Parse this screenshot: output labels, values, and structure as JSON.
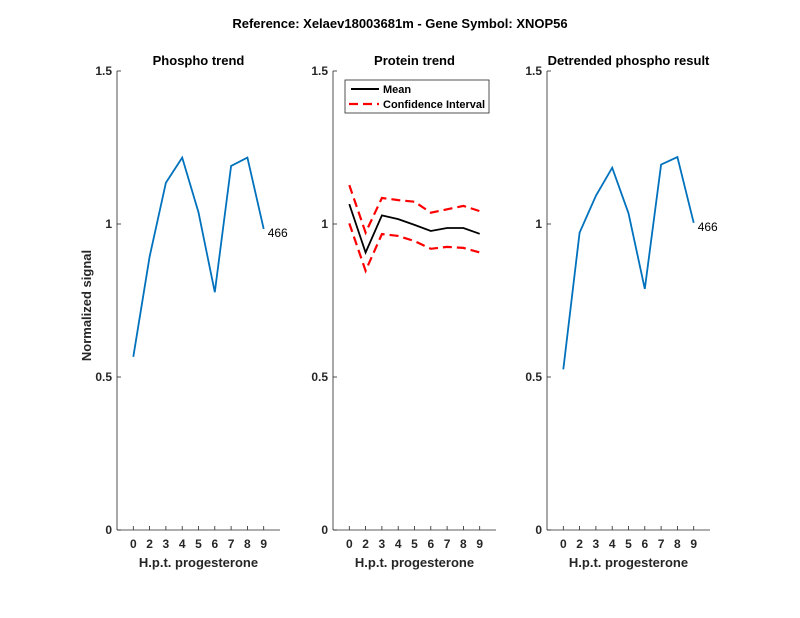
{
  "chart_data": {
    "type": "line",
    "title": "Reference:  Xelaev18003681m - Gene Symbol:  XNOP56",
    "panels": [
      {
        "title": "Phospho trend",
        "xlabel": "H.p.t. progesterone",
        "ylabel": "Normalized signal",
        "categories": [
          "0",
          "2",
          "3",
          "4",
          "5",
          "6",
          "7",
          "8",
          "9"
        ],
        "yticks": [
          "0",
          "0.5",
          "1",
          "1.5"
        ],
        "ylim": [
          0,
          1.5
        ],
        "series": [
          {
            "name": "466",
            "color": "#0072BD",
            "style": "solid",
            "values": [
              0.566,
              0.893,
              1.135,
              1.217,
              1.038,
              0.777,
              1.19,
              1.217,
              0.984
            ]
          }
        ],
        "end_label": "466"
      },
      {
        "title": "Protein trend",
        "xlabel": "H.p.t. progesterone",
        "ylabel": "",
        "categories": [
          "0",
          "2",
          "3",
          "4",
          "5",
          "6",
          "7",
          "8",
          "9"
        ],
        "yticks": [
          "0",
          "0.5",
          "1",
          "1.5"
        ],
        "ylim": [
          0,
          1.5
        ],
        "legend": {
          "placement": "top-left",
          "entries": [
            "Mean",
            "Confidence Interval"
          ]
        },
        "series": [
          {
            "name": "Mean",
            "color": "#000000",
            "style": "solid",
            "values": [
              1.065,
              0.907,
              1.028,
              1.016,
              0.997,
              0.977,
              0.987,
              0.987,
              0.968
            ]
          },
          {
            "name": "Confidence Interval",
            "color": "#FF0000",
            "style": "dashed",
            "values": [
              1.127,
              0.972,
              1.085,
              1.078,
              1.073,
              1.037,
              1.048,
              1.059,
              1.042
            ]
          },
          {
            "name": "Confidence Interval",
            "color": "#FF0000",
            "style": "dashed",
            "values": [
              1.002,
              0.847,
              0.967,
              0.961,
              0.944,
              0.919,
              0.925,
              0.922,
              0.907
            ]
          }
        ]
      },
      {
        "title": "Detrended phospho result",
        "xlabel": "H.p.t. progesterone",
        "ylabel": "",
        "categories": [
          "0",
          "2",
          "3",
          "4",
          "5",
          "6",
          "7",
          "8",
          "9"
        ],
        "yticks": [
          "0",
          "0.5",
          "1",
          "1.5"
        ],
        "ylim": [
          0,
          1.5
        ],
        "series": [
          {
            "name": "466",
            "color": "#0072BD",
            "style": "solid",
            "values": [
              0.525,
              0.972,
              1.092,
              1.184,
              1.035,
              0.788,
              1.194,
              1.219,
              1.004
            ]
          }
        ],
        "end_label": "466"
      }
    ]
  }
}
